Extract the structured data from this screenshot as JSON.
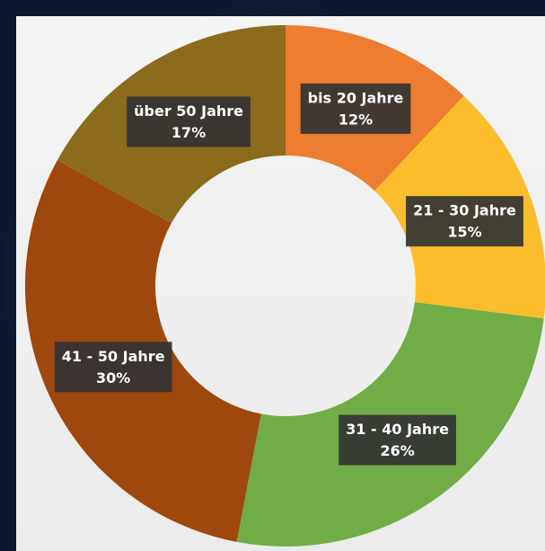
{
  "chart_data": {
    "type": "donut",
    "categories": [
      "bis 20 Jahre",
      "21 - 30 Jahre",
      "31 - 40 Jahre",
      "41 - 50 Jahre",
      "über 50 Jahre"
    ],
    "values": [
      12,
      15,
      26,
      30,
      17
    ],
    "value_labels": [
      "12%",
      "15%",
      "26%",
      "30%",
      "17%"
    ],
    "colors": [
      "#ed7d31",
      "#fbbd2c",
      "#70ad47",
      "#9e480e",
      "#8c6b1c"
    ]
  }
}
